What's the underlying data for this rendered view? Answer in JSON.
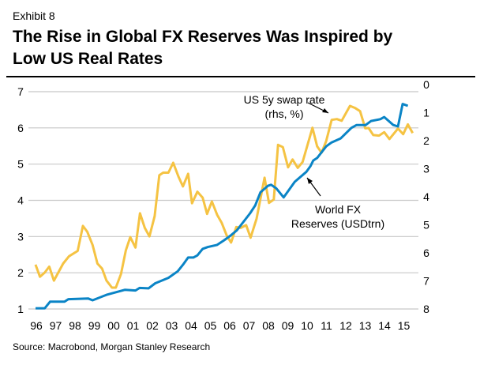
{
  "header": {
    "exhibit": "Exhibit 8",
    "title_line1": "The Rise in Global FX Reserves Was Inspired by",
    "title_line2": "Low US Real Rates"
  },
  "source": "Source: Macrobond, Morgan Stanley Research",
  "chart_data": {
    "type": "line",
    "title": "",
    "grid": true,
    "x_tick_labels": [
      "96",
      "97",
      "98",
      "99",
      "00",
      "01",
      "02",
      "03",
      "04",
      "05",
      "06",
      "07",
      "08",
      "09",
      "10",
      "11",
      "12",
      "13",
      "14",
      "15"
    ],
    "x_range": [
      1996,
      2015.6
    ],
    "y_left": {
      "range": [
        1,
        7
      ],
      "ticks": [
        "1",
        "2",
        "3",
        "4",
        "5",
        "6",
        "7"
      ]
    },
    "y_right": {
      "range": [
        0,
        8
      ],
      "inverted": true,
      "ticks": [
        "0",
        "1",
        "2",
        "3",
        "4",
        "5",
        "6",
        "7",
        "8"
      ]
    },
    "annotations": [
      {
        "line1": "US 5y swap rate",
        "line2": "(rhs, %)"
      },
      {
        "line1": "World FX",
        "line2": "Reserves (USDtrn)"
      }
    ],
    "series": [
      {
        "name": "World FX Reserves (USDtrn)",
        "axis": "left",
        "color": "#0a84c6",
        "x": [
          1996.04,
          1996.52,
          1996.79,
          1997.54,
          1997.74,
          1998.76,
          1998.99,
          1999.71,
          2000.67,
          2001.21,
          2001.42,
          2001.88,
          2002.23,
          2002.91,
          2003.39,
          2003.66,
          2003.93,
          2004.2,
          2004.41,
          2004.68,
          2004.95,
          2005.43,
          2005.77,
          2006.11,
          2006.45,
          2007.13,
          2007.4,
          2007.67,
          2008.05,
          2008.22,
          2008.49,
          2008.87,
          2009.44,
          2010.05,
          2010.26,
          2010.4,
          2010.6,
          2011.07,
          2011.35,
          2011.82,
          2012.37,
          2012.64,
          2013.11,
          2013.39,
          2013.87,
          2014.07,
          2014.54,
          2014.78,
          2015.02,
          2015.29
        ],
        "y": [
          1.02,
          1.02,
          1.2,
          1.2,
          1.27,
          1.29,
          1.24,
          1.39,
          1.53,
          1.51,
          1.58,
          1.57,
          1.71,
          1.86,
          2.04,
          2.22,
          2.42,
          2.42,
          2.48,
          2.66,
          2.71,
          2.77,
          2.89,
          3.02,
          3.17,
          3.64,
          3.86,
          4.22,
          4.4,
          4.43,
          4.33,
          4.08,
          4.51,
          4.79,
          4.95,
          5.1,
          5.17,
          5.49,
          5.6,
          5.71,
          6.0,
          6.08,
          6.08,
          6.19,
          6.24,
          6.3,
          6.08,
          6.04,
          6.66,
          6.61
        ]
      },
      {
        "name": "US 5y swap rate (rhs, %)",
        "axis": "right",
        "color": "#f5c343",
        "x": [
          1996.04,
          1996.27,
          1996.52,
          1996.75,
          1996.99,
          1997.47,
          1997.77,
          1998.22,
          1998.49,
          1998.72,
          1998.99,
          1999.24,
          1999.48,
          1999.71,
          1999.99,
          2000.19,
          2000.46,
          2000.71,
          2000.94,
          2001.21,
          2001.44,
          2001.69,
          2001.93,
          2002.2,
          2002.44,
          2002.64,
          2002.91,
          2003.16,
          2003.43,
          2003.66,
          2003.93,
          2004.13,
          2004.41,
          2004.68,
          2004.91,
          2005.16,
          2005.43,
          2005.66,
          2005.93,
          2006.15,
          2006.42,
          2006.65,
          2006.93,
          2007.16,
          2007.47,
          2007.88,
          2008.11,
          2008.36,
          2008.58,
          2008.83,
          2009.1,
          2009.33,
          2009.6,
          2009.85,
          2010.36,
          2010.6,
          2010.83,
          2011.07,
          2011.35,
          2011.62,
          2011.87,
          2012.3,
          2012.57,
          2012.82,
          2013.09,
          2013.26,
          2013.5,
          2013.8,
          2014.07,
          2014.34,
          2014.78,
          2015.05,
          2015.29,
          2015.54
        ],
        "y": [
          6.42,
          6.85,
          6.7,
          6.49,
          6.99,
          6.38,
          6.12,
          5.93,
          5.04,
          5.25,
          5.72,
          6.38,
          6.56,
          6.99,
          7.24,
          7.24,
          6.75,
          5.91,
          5.44,
          5.81,
          4.59,
          5.11,
          5.41,
          4.69,
          3.23,
          3.14,
          3.14,
          2.79,
          3.28,
          3.63,
          3.18,
          4.23,
          3.82,
          4.03,
          4.61,
          4.17,
          4.64,
          4.92,
          5.39,
          5.63,
          5.08,
          5.11,
          5.01,
          5.46,
          4.78,
          3.32,
          4.22,
          4.1,
          2.15,
          2.23,
          2.95,
          2.67,
          2.97,
          2.76,
          1.54,
          2.2,
          2.43,
          2.01,
          1.26,
          1.23,
          1.29,
          0.76,
          0.84,
          0.95,
          1.56,
          1.55,
          1.8,
          1.82,
          1.7,
          1.94,
          1.57,
          1.77,
          1.42,
          1.73
        ]
      }
    ]
  }
}
